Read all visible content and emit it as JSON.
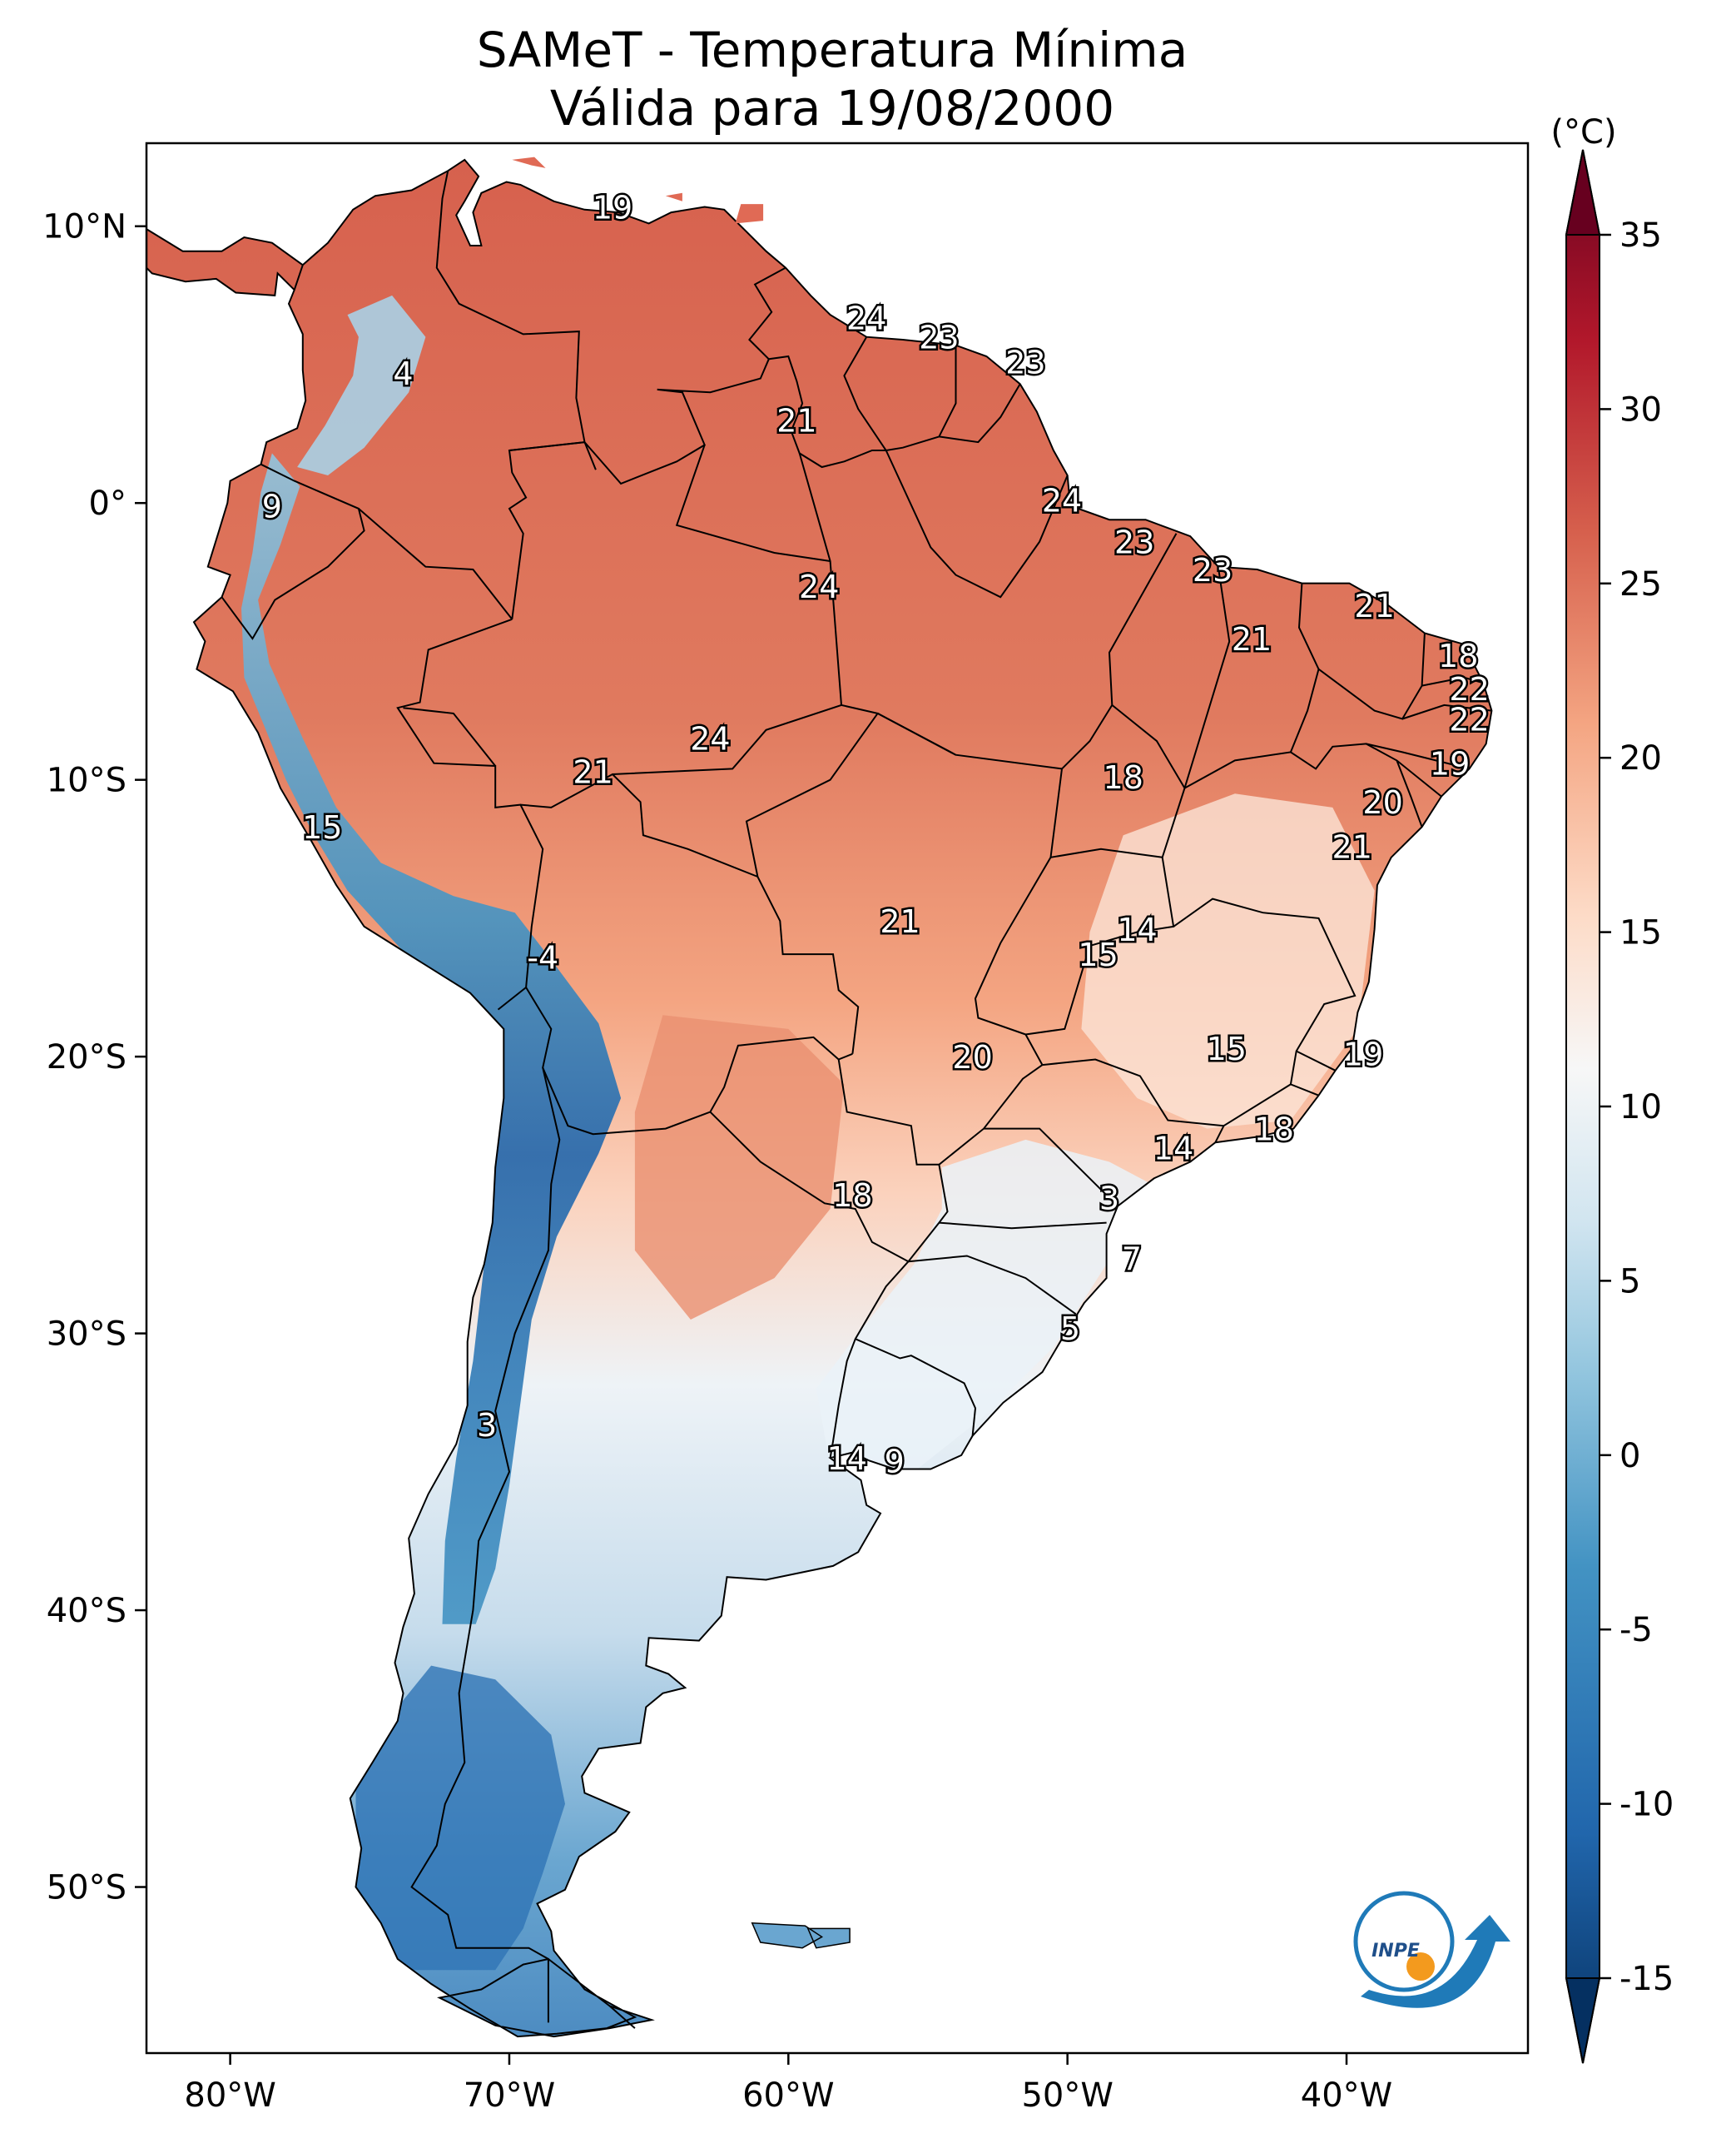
{
  "title": {
    "line1": "SAMeT - Temperatura Mínima",
    "line2": "Válida para 19/08/2000"
  },
  "map": {
    "lon_range": [
      -83,
      -33.5
    ],
    "lat_range": [
      -56,
      13
    ],
    "lon_ticks": [
      {
        "value": -80,
        "label": "80°W"
      },
      {
        "value": -70,
        "label": "70°W"
      },
      {
        "value": -60,
        "label": "60°W"
      },
      {
        "value": -50,
        "label": "50°W"
      },
      {
        "value": -40,
        "label": "40°W"
      }
    ],
    "lat_ticks": [
      {
        "value": 10,
        "label": "10°N"
      },
      {
        "value": 0,
        "label": "0°"
      },
      {
        "value": -10,
        "label": "10°S"
      },
      {
        "value": -20,
        "label": "20°S"
      },
      {
        "value": -30,
        "label": "30°S"
      },
      {
        "value": -40,
        "label": "40°S"
      },
      {
        "value": -50,
        "label": "50°S"
      }
    ],
    "labels": [
      {
        "lon": -66.3,
        "lat": 10.6,
        "value": "19"
      },
      {
        "lon": -57.2,
        "lat": 6.6,
        "value": "24"
      },
      {
        "lon": -54.6,
        "lat": 5.9,
        "value": "23"
      },
      {
        "lon": -51.5,
        "lat": 5.0,
        "value": "23"
      },
      {
        "lon": -59.7,
        "lat": 2.9,
        "value": "21"
      },
      {
        "lon": -73.8,
        "lat": 4.6,
        "value": "4"
      },
      {
        "lon": -78.5,
        "lat": -0.2,
        "value": "9"
      },
      {
        "lon": -50.2,
        "lat": 0.0,
        "value": "24"
      },
      {
        "lon": -47.6,
        "lat": -1.5,
        "value": "23"
      },
      {
        "lon": -44.8,
        "lat": -2.5,
        "value": "23"
      },
      {
        "lon": -58.9,
        "lat": -3.1,
        "value": "24"
      },
      {
        "lon": -39.0,
        "lat": -3.8,
        "value": "21"
      },
      {
        "lon": -43.4,
        "lat": -5.0,
        "value": "21"
      },
      {
        "lon": -36.0,
        "lat": -5.6,
        "value": "18"
      },
      {
        "lon": -35.6,
        "lat": -6.8,
        "value": "22"
      },
      {
        "lon": -35.6,
        "lat": -7.9,
        "value": "22"
      },
      {
        "lon": -36.3,
        "lat": -9.5,
        "value": "19"
      },
      {
        "lon": -38.7,
        "lat": -10.9,
        "value": "20"
      },
      {
        "lon": -62.8,
        "lat": -8.6,
        "value": "24"
      },
      {
        "lon": -67.0,
        "lat": -9.8,
        "value": "21"
      },
      {
        "lon": -48.0,
        "lat": -10.0,
        "value": "18"
      },
      {
        "lon": -39.8,
        "lat": -12.5,
        "value": "21"
      },
      {
        "lon": -76.7,
        "lat": -11.8,
        "value": "15"
      },
      {
        "lon": -47.5,
        "lat": -15.5,
        "value": "14"
      },
      {
        "lon": -48.9,
        "lat": -16.4,
        "value": "15"
      },
      {
        "lon": -56.0,
        "lat": -15.2,
        "value": "21"
      },
      {
        "lon": -68.8,
        "lat": -16.5,
        "value": "-4"
      },
      {
        "lon": -53.4,
        "lat": -20.1,
        "value": "20"
      },
      {
        "lon": -44.3,
        "lat": -19.8,
        "value": "15"
      },
      {
        "lon": -39.4,
        "lat": -20.0,
        "value": "19"
      },
      {
        "lon": -42.6,
        "lat": -22.7,
        "value": "18"
      },
      {
        "lon": -46.2,
        "lat": -23.4,
        "value": "14"
      },
      {
        "lon": -48.5,
        "lat": -25.2,
        "value": "3"
      },
      {
        "lon": -57.7,
        "lat": -25.1,
        "value": "18"
      },
      {
        "lon": -47.7,
        "lat": -27.4,
        "value": "7"
      },
      {
        "lon": -49.9,
        "lat": -29.9,
        "value": "5"
      },
      {
        "lon": -70.8,
        "lat": -33.4,
        "value": "3"
      },
      {
        "lon": -57.9,
        "lat": -34.6,
        "value": "14"
      },
      {
        "lon": -56.2,
        "lat": -34.7,
        "value": "9"
      }
    ]
  },
  "colorbar": {
    "unit": "(°C)",
    "min": -15,
    "max": 35,
    "ticks": [
      {
        "value": 35,
        "label": "35"
      },
      {
        "value": 30,
        "label": "30"
      },
      {
        "value": 25,
        "label": "25"
      },
      {
        "value": 20,
        "label": "20"
      },
      {
        "value": 15,
        "label": "15"
      },
      {
        "value": 10,
        "label": "10"
      },
      {
        "value": 5,
        "label": "5"
      },
      {
        "value": 0,
        "label": "0"
      },
      {
        "value": -5,
        "label": "-5"
      },
      {
        "value": -10,
        "label": "-10"
      },
      {
        "value": -15,
        "label": "-15"
      }
    ]
  },
  "logo": {
    "text": "INPE"
  },
  "colors": {
    "warm_dark": "#67001f",
    "warm": "#d6604d",
    "mid": "#f7f7f7",
    "cool": "#4393c3",
    "cool_dark": "#053061"
  }
}
